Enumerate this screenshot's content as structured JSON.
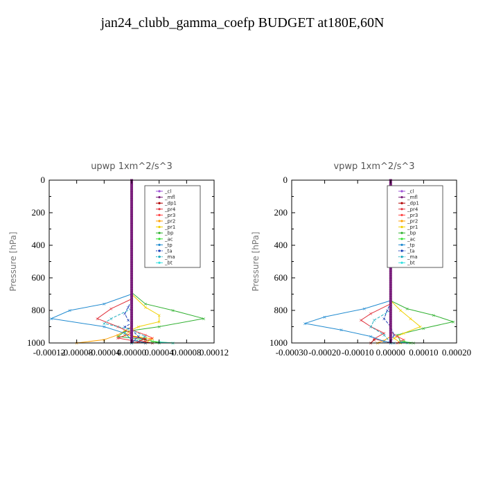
{
  "figure": {
    "title": "jan24_clubb_gamma_coefp  BUDGET at180E,60N"
  },
  "colors": {
    "_cl": "#9b4fd6",
    "_mfl": "#7a1f7a",
    "_dp1": "#b00000",
    "_pr4": "#e0323c",
    "_pr3": "#ff4040",
    "_pr2": "#ffa000",
    "_pr1": "#f0d000",
    "_bp": "#2fb02f",
    "_ac": "#30e030",
    "_tp": "#1f8ad0",
    "_ta": "#1a3fb8",
    "_ma": "#20b0c0",
    "_bt": "#30e0e0"
  },
  "chart_data": [
    {
      "type": "line",
      "title": "upwp   1xm^2/s^3",
      "ylabel": "Pressure [hPa]",
      "xlim": [
        -0.00012,
        0.00012
      ],
      "ylim": [
        1000,
        0
      ],
      "xticks": [
        "-0.00012",
        "-0.00008",
        "-0.00004",
        "0.00000",
        "0.00004",
        "0.00008",
        "0.00012"
      ],
      "xtick_values": [
        -0.00012,
        -8e-05,
        -4e-05,
        0.0,
        4e-05,
        8e-05,
        0.00012
      ],
      "yticks": [
        "0",
        "200",
        "400",
        "600",
        "800",
        "1000"
      ],
      "ytick_values": [
        0,
        200,
        400,
        600,
        800,
        1000
      ],
      "legend": [
        "_cl",
        "_mfl",
        "_dp1",
        "_pr4",
        "_pr3",
        "_pr2",
        "_pr1",
        "_bp",
        "_ac",
        "_tp",
        "_ta",
        "_ma",
        "_bt"
      ],
      "series": [
        {
          "name": "_bp",
          "p": [
            690,
            760,
            800,
            850,
            900,
            930,
            960,
            980,
            1000
          ],
          "x": [
            0,
            2e-05,
            6e-05,
            0.000105,
            4e-05,
            -1e-05,
            -2e-05,
            2e-05,
            4e-05
          ]
        },
        {
          "name": "_pr1",
          "p": [
            700,
            780,
            830,
            870,
            900,
            920,
            950,
            975,
            1000
          ],
          "x": [
            0,
            2e-05,
            4e-05,
            4e-05,
            1e-05,
            0.0,
            -1e-05,
            3e-05,
            2e-05
          ]
        },
        {
          "name": "_pr2",
          "p": [
            900,
            950,
            980,
            1000
          ],
          "x": [
            0,
            -2e-05,
            -4e-05,
            -8e-05
          ]
        },
        {
          "name": "_pr4",
          "p": [
            730,
            790,
            850,
            900,
            940,
            970,
            1000
          ],
          "x": [
            0,
            -3e-05,
            -5e-05,
            -2e-05,
            0.0,
            -2e-05,
            2e-05
          ]
        },
        {
          "name": "_pr3",
          "p": [
            920,
            950,
            970,
            990,
            1000
          ],
          "x": [
            0,
            2e-05,
            3e-05,
            2e-05,
            0.0
          ]
        },
        {
          "name": "_dp1",
          "p": [
            960,
            975,
            990,
            1000
          ],
          "x": [
            0,
            2e-05,
            1e-05,
            3e-05
          ]
        },
        {
          "name": "_tp",
          "p": [
            700,
            760,
            800,
            850,
            900,
            940,
            980,
            1000
          ],
          "x": [
            0,
            -4e-05,
            -9e-05,
            -0.000117,
            -4e-05,
            -1e-05,
            0.0,
            2e-05
          ]
        },
        {
          "name": "_ta",
          "p": [
            740,
            780,
            820,
            860,
            880,
            900,
            920,
            960,
            1000
          ],
          "x": [
            0,
            -5e-06,
            -1e-05,
            -5e-06,
            0.0,
            -1e-05,
            0.0,
            1e-05,
            0.0
          ]
        },
        {
          "name": "_ma",
          "p": [
            790,
            850,
            880,
            920,
            960,
            1000
          ],
          "x": [
            0,
            -3e-05,
            -4e-05,
            0.0,
            2e-05,
            0.0
          ]
        },
        {
          "name": "_ac",
          "p": [
            990,
            1000
          ],
          "x": [
            3e-05,
            6e-05
          ]
        },
        {
          "name": "_bt",
          "p": [
            995,
            1000
          ],
          "x": [
            4e-05,
            6e-05
          ]
        },
        {
          "name": "_mfl",
          "p": [
            0,
            1000
          ],
          "x": [
            0,
            0
          ]
        },
        {
          "name": "_cl",
          "p": [
            0,
            1000
          ],
          "x": [
            0,
            0
          ]
        }
      ]
    },
    {
      "type": "line",
      "title": "vpwp   1xm^2/s^3",
      "ylabel": "Pressure [hPa]",
      "xlim": [
        -0.0003,
        0.0002
      ],
      "ylim": [
        1000,
        0
      ],
      "xticks": [
        "-0.00030",
        "-0.00020",
        "-0.00010",
        "0.00000",
        "0.00010",
        "0.00020"
      ],
      "xtick_values": [
        -0.0003,
        -0.0002,
        -0.0001,
        0.0,
        0.0001,
        0.0002
      ],
      "yticks": [
        "0",
        "200",
        "400",
        "600",
        "800",
        "1000"
      ],
      "ytick_values": [
        0,
        200,
        400,
        600,
        800,
        1000
      ],
      "legend": [
        "_cl",
        "_mfl",
        "_dp1",
        "_pr4",
        "_pr3",
        "_pr2",
        "_pr1",
        "_bp",
        "_ac",
        "_tp",
        "_ta",
        "_ma",
        "_bt"
      ],
      "series": [
        {
          "name": "_bp",
          "p": [
            740,
            790,
            830,
            870,
            910,
            950,
            990,
            1000
          ],
          "x": [
            0,
            5e-05,
            0.00013,
            0.00019,
            0.0001,
            2e-05,
            3e-05,
            7e-05
          ]
        },
        {
          "name": "_pr1",
          "p": [
            740,
            800,
            850,
            900,
            940,
            970,
            1000
          ],
          "x": [
            0,
            3e-05,
            6e-05,
            9e-05,
            4e-05,
            1e-05,
            3e-05
          ]
        },
        {
          "name": "_pr2",
          "p": [
            960,
            985,
            1000
          ],
          "x": [
            0,
            -2e-05,
            -4e-05
          ]
        },
        {
          "name": "_pr4",
          "p": [
            760,
            820,
            860,
            900,
            940,
            975,
            1000
          ],
          "x": [
            0,
            -6e-05,
            -9e-05,
            -6e-05,
            -2e-05,
            -5e-05,
            0.0
          ]
        },
        {
          "name": "_pr3",
          "p": [
            930,
            960,
            980,
            1000
          ],
          "x": [
            0,
            2e-05,
            4e-05,
            2e-05
          ]
        },
        {
          "name": "_dp1",
          "p": [
            980,
            1000
          ],
          "x": [
            -5e-05,
            -6e-05
          ]
        },
        {
          "name": "_tp",
          "p": [
            740,
            790,
            840,
            880,
            920,
            960,
            990,
            1000
          ],
          "x": [
            0,
            -8e-05,
            -0.0002,
            -0.00026,
            -0.00015,
            -6e-05,
            -2e-05,
            1e-05
          ]
        },
        {
          "name": "_ta",
          "p": [
            750,
            800,
            850,
            900,
            950,
            1000
          ],
          "x": [
            0,
            -1e-05,
            -2e-05,
            0.0,
            1e-05,
            0.0
          ]
        },
        {
          "name": "_ma",
          "p": [
            800,
            860,
            900,
            950,
            1000
          ],
          "x": [
            0,
            -5e-05,
            -6e-05,
            -2e-05,
            0.0
          ]
        },
        {
          "name": "_ac",
          "p": [
            990,
            1000
          ],
          "x": [
            4e-05,
            6e-05
          ]
        },
        {
          "name": "_bt",
          "p": [
            995,
            1000
          ],
          "x": [
            3e-05,
            5e-05
          ]
        },
        {
          "name": "_mfl",
          "p": [
            0,
            1000
          ],
          "x": [
            0,
            0
          ]
        },
        {
          "name": "_cl",
          "p": [
            0,
            1000
          ],
          "x": [
            0,
            0
          ]
        }
      ]
    }
  ]
}
